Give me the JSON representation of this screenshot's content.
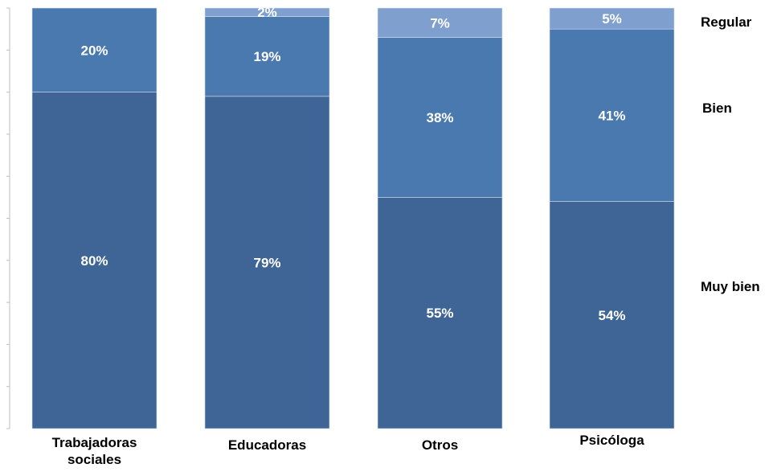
{
  "chart_data": {
    "type": "bar",
    "stacked": true,
    "percent": true,
    "categories": [
      "Trabajadoras sociales",
      "Educadoras",
      "Otros",
      "Psicóloga"
    ],
    "category_lines": [
      [
        "Trabajadoras",
        "sociales"
      ],
      [
        "Educadoras"
      ],
      [
        "Otros"
      ],
      [
        "Psicóloga"
      ]
    ],
    "series": [
      {
        "name": "Muy bien",
        "values": [
          80,
          79,
          55,
          54
        ],
        "labels": [
          "80%",
          "79%",
          "55%",
          "54%"
        ],
        "color": "#3e6595"
      },
      {
        "name": "Bien",
        "values": [
          20,
          19,
          38,
          41
        ],
        "labels": [
          "20%",
          "19%",
          "38%",
          "41%"
        ],
        "color": "#4a79b0"
      },
      {
        "name": "Regular",
        "values": [
          0,
          2,
          7,
          5
        ],
        "labels": [
          "",
          "2%",
          "7%",
          "5%"
        ],
        "color": "#7f9fcf"
      }
    ],
    "ylim": [
      0,
      100
    ],
    "legend_position": "right"
  }
}
